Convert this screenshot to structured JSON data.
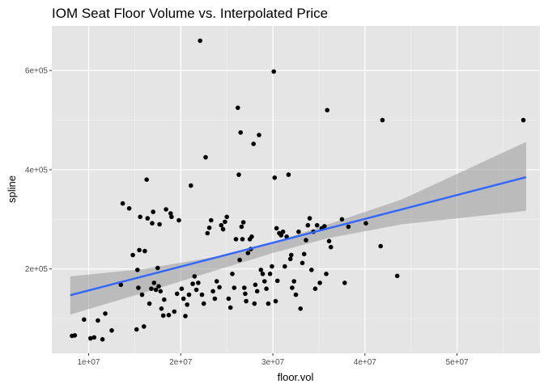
{
  "chart_data": {
    "type": "scatter",
    "title": "IOM Seat Floor Volume vs. Interpolated Price",
    "xlabel": "floor.vol",
    "ylabel": "spline",
    "xlim": [
      6000000,
      59000000
    ],
    "ylim": [
      30000,
      690000
    ],
    "x_ticks": [
      10000000,
      20000000,
      30000000,
      40000000,
      50000000
    ],
    "x_tick_labels": [
      "1e+07",
      "2e+07",
      "3e+07",
      "4e+07",
      "5e+07"
    ],
    "y_ticks": [
      200000,
      400000,
      600000
    ],
    "y_tick_labels": [
      "2e+05",
      "4e+05",
      "6e+05"
    ],
    "grid": true,
    "background": "#e5e5e5",
    "point_color": "#000000",
    "fit_line": {
      "color": "#3366ff",
      "x": [
        8000000,
        57500000
      ],
      "y": [
        147000,
        385000
      ]
    },
    "confidence_band": {
      "color": "#999999",
      "x": [
        8000000,
        16000000,
        24000000,
        30000000,
        36000000,
        44000000,
        57500000
      ],
      "lower": [
        108000,
        152000,
        198000,
        232000,
        262000,
        290000,
        317000
      ],
      "upper": [
        185000,
        200000,
        225000,
        253000,
        290000,
        340000,
        456000
      ]
    },
    "points": [
      [
        8200000,
        65000
      ],
      [
        8500000,
        66000
      ],
      [
        9500000,
        98000
      ],
      [
        10200000,
        60000
      ],
      [
        10600000,
        62000
      ],
      [
        11000000,
        96000
      ],
      [
        11500000,
        58000
      ],
      [
        11800000,
        110000
      ],
      [
        12500000,
        76000
      ],
      [
        13500000,
        168000
      ],
      [
        13700000,
        332000
      ],
      [
        14400000,
        322000
      ],
      [
        14800000,
        228000
      ],
      [
        15200000,
        78000
      ],
      [
        15300000,
        198000
      ],
      [
        15400000,
        162000
      ],
      [
        15500000,
        238000
      ],
      [
        15600000,
        305000
      ],
      [
        15800000,
        148000
      ],
      [
        16000000,
        84000
      ],
      [
        16100000,
        236000
      ],
      [
        16300000,
        380000
      ],
      [
        16400000,
        302000
      ],
      [
        16600000,
        130000
      ],
      [
        16800000,
        160000
      ],
      [
        16900000,
        292000
      ],
      [
        17000000,
        315000
      ],
      [
        17100000,
        172000
      ],
      [
        17300000,
        158000
      ],
      [
        17500000,
        202000
      ],
      [
        17600000,
        165000
      ],
      [
        17700000,
        290000
      ],
      [
        17800000,
        155000
      ],
      [
        17900000,
        120000
      ],
      [
        18100000,
        106000
      ],
      [
        18200000,
        138000
      ],
      [
        18400000,
        320000
      ],
      [
        18700000,
        107000
      ],
      [
        18900000,
        312000
      ],
      [
        19000000,
        305000
      ],
      [
        19300000,
        114000
      ],
      [
        19600000,
        150000
      ],
      [
        19800000,
        298000
      ],
      [
        20100000,
        160000
      ],
      [
        20300000,
        140000
      ],
      [
        20500000,
        105000
      ],
      [
        20700000,
        128000
      ],
      [
        20900000,
        148000
      ],
      [
        21100000,
        368000
      ],
      [
        21300000,
        170000
      ],
      [
        21500000,
        185000
      ],
      [
        21700000,
        158000
      ],
      [
        21900000,
        172000
      ],
      [
        22100000,
        660000
      ],
      [
        22300000,
        148000
      ],
      [
        22500000,
        130000
      ],
      [
        22700000,
        425000
      ],
      [
        22900000,
        272000
      ],
      [
        23100000,
        283000
      ],
      [
        23300000,
        298000
      ],
      [
        23500000,
        155000
      ],
      [
        23700000,
        140000
      ],
      [
        23900000,
        175000
      ],
      [
        24200000,
        163000
      ],
      [
        24400000,
        288000
      ],
      [
        24600000,
        280000
      ],
      [
        24800000,
        295000
      ],
      [
        25000000,
        305000
      ],
      [
        25200000,
        140000
      ],
      [
        25400000,
        122000
      ],
      [
        25600000,
        190000
      ],
      [
        25800000,
        162000
      ],
      [
        26000000,
        260000
      ],
      [
        26200000,
        525000
      ],
      [
        26300000,
        390000
      ],
      [
        26400000,
        218000
      ],
      [
        26500000,
        475000
      ],
      [
        26600000,
        285000
      ],
      [
        26700000,
        260000
      ],
      [
        26800000,
        294000
      ],
      [
        26900000,
        162000
      ],
      [
        27000000,
        150000
      ],
      [
        27100000,
        135000
      ],
      [
        27300000,
        232000
      ],
      [
        27500000,
        260000
      ],
      [
        27600000,
        240000
      ],
      [
        27700000,
        265000
      ],
      [
        27900000,
        452000
      ],
      [
        28000000,
        130000
      ],
      [
        28100000,
        168000
      ],
      [
        28300000,
        155000
      ],
      [
        28500000,
        470000
      ],
      [
        28700000,
        198000
      ],
      [
        28900000,
        190000
      ],
      [
        29100000,
        175000
      ],
      [
        29300000,
        160000
      ],
      [
        29500000,
        130000
      ],
      [
        29700000,
        190000
      ],
      [
        29900000,
        205000
      ],
      [
        30100000,
        598000
      ],
      [
        30200000,
        384000
      ],
      [
        30300000,
        135000
      ],
      [
        30400000,
        282000
      ],
      [
        30500000,
        176000
      ],
      [
        30700000,
        272000
      ],
      [
        30900000,
        268000
      ],
      [
        31100000,
        275000
      ],
      [
        31300000,
        205000
      ],
      [
        31500000,
        265000
      ],
      [
        31700000,
        390000
      ],
      [
        31900000,
        220000
      ],
      [
        32000000,
        228000
      ],
      [
        32100000,
        162000
      ],
      [
        32300000,
        175000
      ],
      [
        32500000,
        148000
      ],
      [
        32800000,
        275000
      ],
      [
        33000000,
        120000
      ],
      [
        33200000,
        212000
      ],
      [
        33400000,
        230000
      ],
      [
        33600000,
        258000
      ],
      [
        33800000,
        288000
      ],
      [
        34000000,
        302000
      ],
      [
        34200000,
        198000
      ],
      [
        34400000,
        275000
      ],
      [
        34600000,
        160000
      ],
      [
        34800000,
        288000
      ],
      [
        35100000,
        172000
      ],
      [
        35300000,
        282000
      ],
      [
        35600000,
        286000
      ],
      [
        35800000,
        190000
      ],
      [
        35900000,
        520000
      ],
      [
        36100000,
        256000
      ],
      [
        36300000,
        244000
      ],
      [
        37500000,
        300000
      ],
      [
        37800000,
        172000
      ],
      [
        38200000,
        285000
      ],
      [
        40100000,
        292000
      ],
      [
        41700000,
        246000
      ],
      [
        41900000,
        500000
      ],
      [
        43500000,
        186000
      ],
      [
        57200000,
        500000
      ]
    ]
  }
}
